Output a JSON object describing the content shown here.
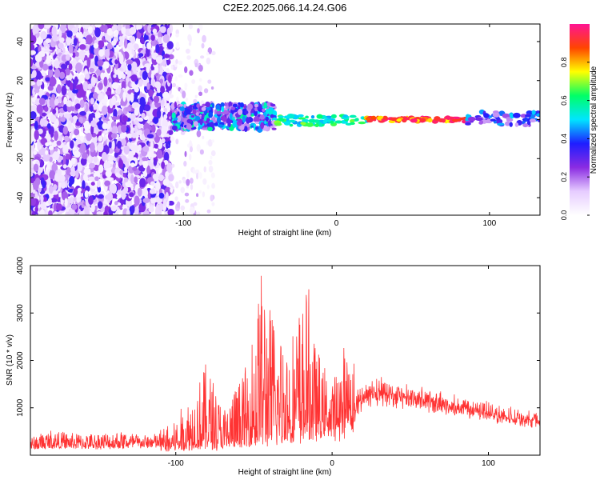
{
  "title": "C2E2.2025.066.14.24.G06",
  "chart_data": [
    {
      "type": "heatmap",
      "xlabel": "Height of straight line (km)",
      "ylabel": "Frequency (Hz)",
      "xlim": [
        -200,
        133
      ],
      "ylim": [
        -49,
        49
      ],
      "xticks": [
        {
          "v": -100,
          "label": "-100"
        },
        {
          "v": 0,
          "label": "0"
        },
        {
          "v": 100,
          "label": "100"
        }
      ],
      "yticks": [
        {
          "v": -40,
          "label": "-40"
        },
        {
          "v": -20,
          "label": "-20"
        },
        {
          "v": 0,
          "label": "0"
        },
        {
          "v": 20,
          "label": "20"
        },
        {
          "v": 40,
          "label": "40"
        }
      ],
      "colorbar": {
        "label": "Normalized spectral amplitude",
        "range": [
          0,
          1
        ],
        "ticks": [
          {
            "v": 0,
            "label": "0.0"
          },
          {
            "v": 0.2,
            "label": "0.2"
          },
          {
            "v": 0.4,
            "label": "0.4"
          },
          {
            "v": 0.6,
            "label": "0.6"
          },
          {
            "v": 0.8,
            "label": "0.8"
          }
        ],
        "colors": [
          "#ffffff",
          "#e6ccff",
          "#8a2be2",
          "#1e1eff",
          "#00e5ff",
          "#00ff66",
          "#ffff00",
          "#ff4500",
          "#ff1493"
        ]
      },
      "regions": [
        {
          "x": [
            -200,
            -108
          ],
          "y": [
            -49,
            49
          ],
          "amplitude": 0.15,
          "pattern": "noise"
        },
        {
          "x": [
            -108,
            -80
          ],
          "y": [
            -49,
            49
          ],
          "amplitude": 0.05,
          "pattern": "sparse"
        },
        {
          "x": [
            -108,
            -40
          ],
          "y": [
            -5,
            8
          ],
          "amplitude": 0.35,
          "pattern": "cluster"
        },
        {
          "x": [
            -40,
            20
          ],
          "y": [
            -3,
            2
          ],
          "amplitude": 0.7,
          "pattern": "line"
        },
        {
          "x": [
            20,
            85
          ],
          "y": [
            -1,
            1
          ],
          "amplitude": 1.0,
          "pattern": "line"
        },
        {
          "x": [
            85,
            133
          ],
          "y": [
            -3,
            4
          ],
          "amplitude": 0.35,
          "pattern": "band"
        }
      ]
    },
    {
      "type": "line",
      "xlabel": "Height of straight line (km)",
      "ylabel": "SNR (10 * v/v)",
      "xlim": [
        -193,
        133
      ],
      "ylim": [
        0,
        4000
      ],
      "color": "#ff3333",
      "xticks": [
        {
          "v": -100,
          "label": "-100"
        },
        {
          "v": 0,
          "label": "0"
        },
        {
          "v": 100,
          "label": "100"
        }
      ],
      "yticks": [
        {
          "v": 1000,
          "label": "1000"
        },
        {
          "v": 2000,
          "label": "2000"
        },
        {
          "v": 3000,
          "label": "3000"
        },
        {
          "v": 4000,
          "label": "4000"
        }
      ],
      "series": [
        {
          "x": [
            -193,
            -180,
            -170,
            -160,
            -150,
            -140,
            -130,
            -120,
            -110,
            -100,
            -90,
            -80,
            -75,
            -70,
            -60,
            -55,
            -50,
            -45,
            -42,
            -40,
            -35,
            -30,
            -25,
            -20,
            -15,
            -10,
            -5,
            0,
            5,
            10,
            15,
            20,
            25,
            30,
            40,
            50,
            60,
            70,
            80,
            90,
            100,
            110,
            120,
            133
          ],
          "floor": [
            150,
            160,
            180,
            170,
            160,
            170,
            180,
            190,
            200,
            210,
            240,
            280,
            300,
            300,
            320,
            350,
            400,
            420,
            450,
            470,
            500,
            550,
            600,
            650,
            700,
            750,
            800,
            850,
            900,
            1000,
            1100,
            1200,
            1300,
            1350,
            1300,
            1250,
            1200,
            1100,
            1050,
            1000,
            920,
            860,
            800,
            720
          ],
          "peak": [
            400,
            550,
            500,
            480,
            500,
            550,
            500,
            450,
            500,
            700,
            1300,
            1900,
            1500,
            900,
            1500,
            1800,
            2800,
            4000,
            3500,
            3100,
            2700,
            2600,
            2500,
            3100,
            3300,
            2000,
            1600,
            1300,
            1800,
            2100,
            1700,
            1600,
            1700,
            1700,
            1600,
            1550,
            1500,
            1400,
            1300,
            1250,
            1200,
            1050,
            1000,
            900
          ]
        }
      ]
    }
  ]
}
